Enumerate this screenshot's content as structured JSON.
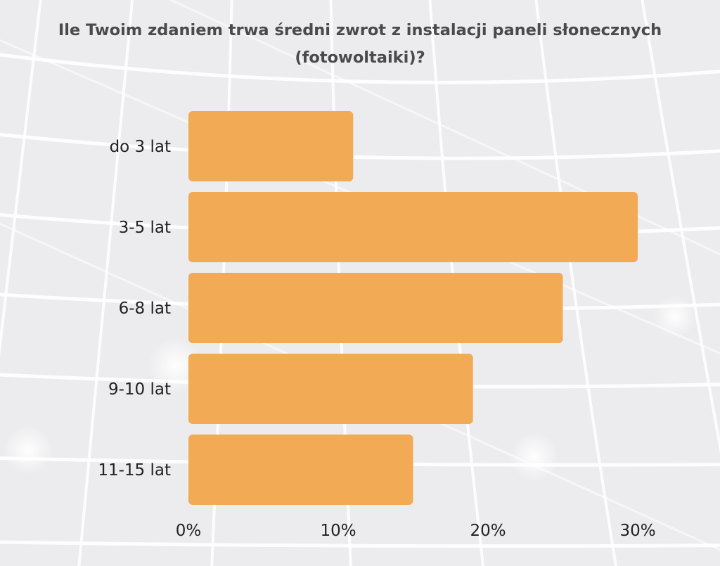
{
  "chart_data": {
    "type": "bar",
    "orientation": "horizontal",
    "title": "Ile Twoim zdaniem trwa średni zwrot z instalacji paneli słonecznych (fotowoltaiki)?",
    "categories": [
      "do 3 lat",
      "3-5 lat",
      "6-8 lat",
      "9-10 lat",
      "11-15 lat"
    ],
    "values": [
      11,
      30,
      25,
      19,
      15
    ],
    "x_ticks": [
      "0%",
      "10%",
      "20%",
      "30%"
    ],
    "xlim": [
      0,
      30
    ],
    "unit": "%",
    "grid": false,
    "legend": "none",
    "bar_color": "#f2aa54"
  }
}
